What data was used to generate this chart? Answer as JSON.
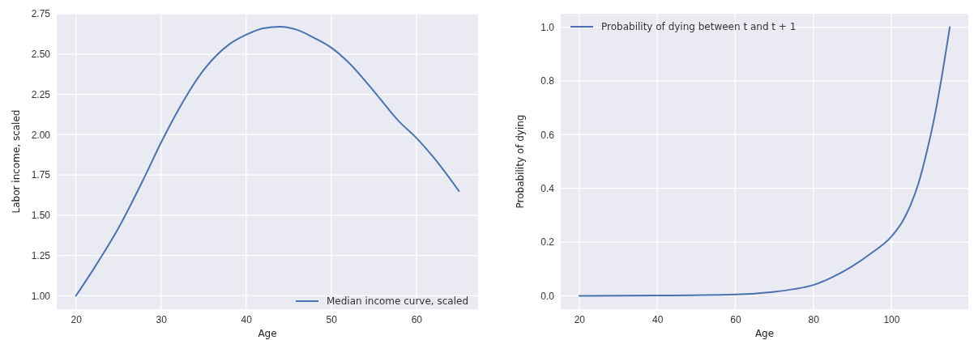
{
  "chart_data": [
    {
      "type": "line",
      "xlabel": "Age",
      "ylabel": "Labor income, scaled",
      "xlim": [
        17.75,
        67.25
      ],
      "ylim": [
        0.917,
        2.75
      ],
      "xticks": [
        20,
        30,
        40,
        50,
        60
      ],
      "yticks": [
        {
          "value": 1,
          "label": "1.00"
        },
        {
          "value": 1.25,
          "label": "1.25"
        },
        {
          "value": 1.5,
          "label": "1.50"
        },
        {
          "value": 1.75,
          "label": "1.75"
        },
        {
          "value": 2,
          "label": "2.00"
        },
        {
          "value": 2.25,
          "label": "2.25"
        },
        {
          "value": 2.5,
          "label": "2.50"
        },
        {
          "value": 2.75,
          "label": "2.75"
        }
      ],
      "grid": true,
      "legend": "bottom right",
      "x": [
        20,
        22,
        25,
        28,
        30,
        32,
        35,
        38,
        40,
        42,
        44,
        46,
        48,
        50,
        52,
        55,
        58,
        60,
        62,
        65
      ],
      "series": [
        {
          "name": "Median income curve, scaled",
          "color": "#4c72b0",
          "values": [
            1.0,
            1.16,
            1.42,
            1.73,
            1.95,
            2.15,
            2.4,
            2.56,
            2.62,
            2.66,
            2.67,
            2.65,
            2.6,
            2.54,
            2.45,
            2.27,
            2.08,
            1.98,
            1.86,
            1.65
          ]
        }
      ]
    },
    {
      "type": "line",
      "xlabel": "Age",
      "ylabel": "Probability of dying",
      "xlim": [
        15.25,
        119.75
      ],
      "ylim": [
        -0.05,
        1.05
      ],
      "xticks": [
        20,
        40,
        60,
        80,
        100
      ],
      "yticks": [
        {
          "value": 0,
          "label": "0.0"
        },
        {
          "value": 0.2,
          "label": "0.2"
        },
        {
          "value": 0.4,
          "label": "0.4"
        },
        {
          "value": 0.6,
          "label": "0.6"
        },
        {
          "value": 0.8,
          "label": "0.8"
        },
        {
          "value": 1,
          "label": "1.0"
        }
      ],
      "grid": true,
      "legend": "top left",
      "x": [
        20,
        40,
        60,
        70,
        75,
        80,
        85,
        90,
        95,
        100,
        103,
        105,
        107,
        109,
        111,
        113,
        115
      ],
      "series": [
        {
          "name": "Probability of dying between t and t + 1",
          "color": "#4c72b0",
          "values": [
            0,
            0.001,
            0.005,
            0.015,
            0.025,
            0.04,
            0.07,
            0.11,
            0.16,
            0.22,
            0.28,
            0.34,
            0.42,
            0.53,
            0.66,
            0.82,
            1.0
          ]
        }
      ]
    }
  ]
}
